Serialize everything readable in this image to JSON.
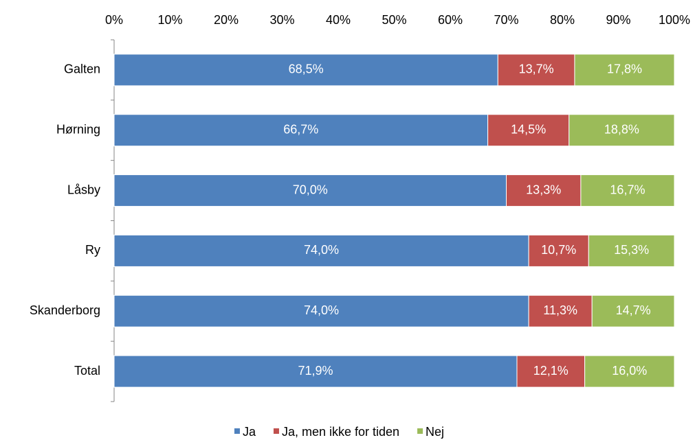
{
  "chart_data": {
    "type": "bar",
    "orientation": "horizontal",
    "stacked": true,
    "categories": [
      "Galten",
      "Hørning",
      "Låsby",
      "Ry",
      "Skanderborg",
      "Total"
    ],
    "series": [
      {
        "name": "Ja",
        "color": "#4f81bd",
        "values": [
          68.5,
          66.7,
          70.0,
          74.0,
          74.0,
          71.9
        ],
        "value_labels": [
          "68,5%",
          "66,7%",
          "70,0%",
          "74,0%",
          "74,0%",
          "71,9%"
        ]
      },
      {
        "name": "Ja, men ikke for tiden",
        "color": "#c0504d",
        "values": [
          13.7,
          14.5,
          13.3,
          10.7,
          11.3,
          12.1
        ],
        "value_labels": [
          "13,7%",
          "14,5%",
          "13,3%",
          "10,7%",
          "11,3%",
          "12,1%"
        ]
      },
      {
        "name": "Nej",
        "color": "#9bbb59",
        "values": [
          17.8,
          18.8,
          16.7,
          15.3,
          14.7,
          16.0
        ],
        "value_labels": [
          "17,8%",
          "18,8%",
          "16,7%",
          "15,3%",
          "14,7%",
          "16,0%"
        ]
      }
    ],
    "xlim": [
      0,
      100
    ],
    "xticks": [
      {
        "value": 0,
        "label": "0%"
      },
      {
        "value": 10,
        "label": "10%"
      },
      {
        "value": 20,
        "label": "20%"
      },
      {
        "value": 30,
        "label": "30%"
      },
      {
        "value": 40,
        "label": "40%"
      },
      {
        "value": 50,
        "label": "50%"
      },
      {
        "value": 60,
        "label": "60%"
      },
      {
        "value": 70,
        "label": "70%"
      },
      {
        "value": 80,
        "label": "80%"
      },
      {
        "value": 90,
        "label": "90%"
      },
      {
        "value": 100,
        "label": "100%"
      }
    ],
    "grid": false,
    "legend": "bottom"
  }
}
